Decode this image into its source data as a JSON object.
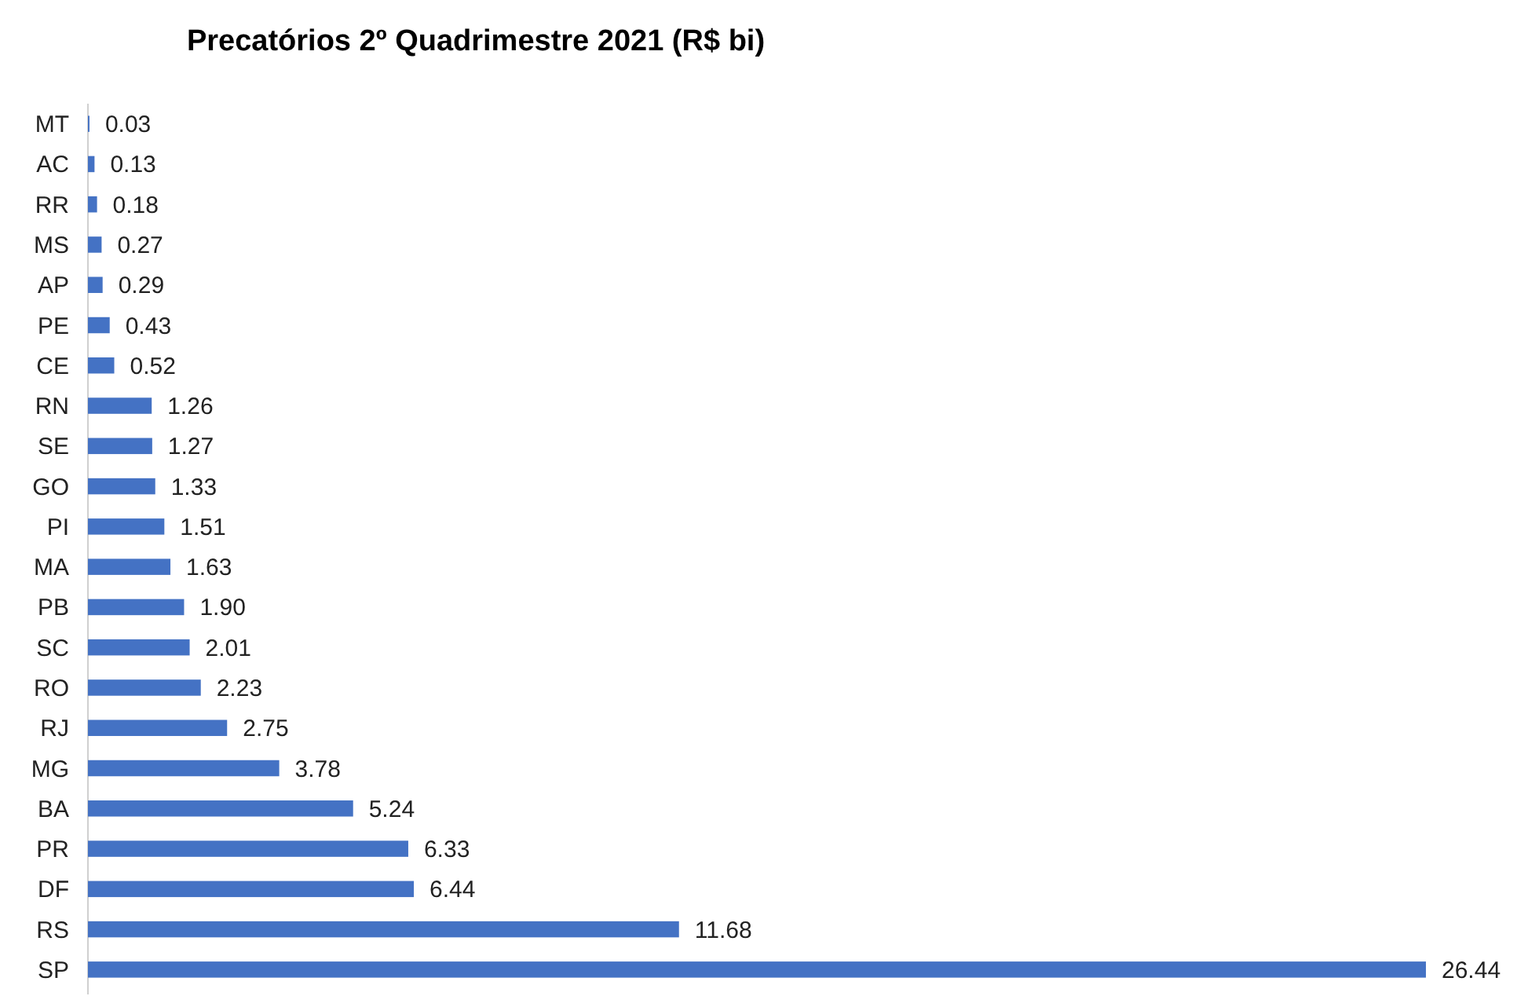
{
  "chart_data": {
    "type": "bar",
    "orientation": "horizontal",
    "title": "Precatórios 2º Quadrimestre 2021 (R$ bi)",
    "categories": [
      "MT",
      "AC",
      "RR",
      "MS",
      "AP",
      "PE",
      "CE",
      "RN",
      "SE",
      "GO",
      "PI",
      "MA",
      "PB",
      "SC",
      "RO",
      "RJ",
      "MG",
      "BA",
      "PR",
      "DF",
      "RS",
      "SP"
    ],
    "values": [
      0.03,
      0.13,
      0.18,
      0.27,
      0.29,
      0.43,
      0.52,
      1.26,
      1.27,
      1.33,
      1.51,
      1.63,
      1.9,
      2.01,
      2.23,
      2.75,
      3.78,
      5.24,
      6.33,
      6.44,
      11.68,
      26.44
    ],
    "value_labels": [
      "0.03",
      "0.13",
      "0.18",
      "0.27",
      "0.29",
      "0.43",
      "0.52",
      "1.26",
      "1.27",
      "1.33",
      "1.51",
      "1.63",
      "1.90",
      "2.01",
      "2.23",
      "2.75",
      "3.78",
      "5.24",
      "6.33",
      "6.44",
      "11.68",
      "26.44"
    ],
    "color": "#4472c4"
  }
}
